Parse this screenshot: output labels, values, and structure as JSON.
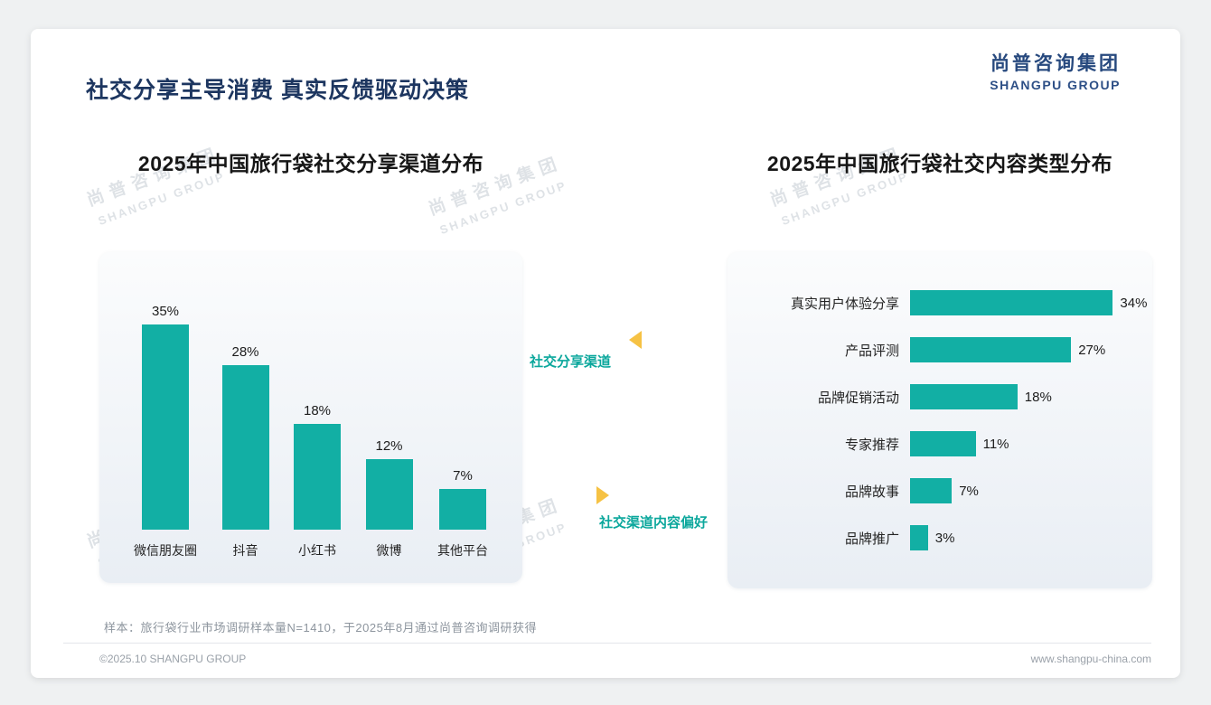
{
  "page": {
    "title": "社交分享主导消费 真实反馈驱动决策",
    "sample_note": "样本：旅行袋行业市场调研样本量N=1410，于2025年8月通过尚普咨询调研获得",
    "footer_left": "©2025.10 SHANGPU GROUP",
    "footer_right": "www.shangpu-china.com"
  },
  "logo": {
    "cn": "尚普咨询集团",
    "en": "SHANGPU GROUP"
  },
  "watermark": {
    "cn": "尚普咨询集团",
    "en": "SHANGPU GROUP"
  },
  "annotations": {
    "left_label": "社交分享渠道",
    "right_label": "社交渠道内容偏好"
  },
  "colors": {
    "teal": "#12afa4",
    "navy": "#1d3660",
    "gold": "#f6c244"
  },
  "chart_data": [
    {
      "type": "bar",
      "orientation": "vertical",
      "title": "2025年中国旅行袋社交分享渠道分布",
      "categories": [
        "微信朋友圈",
        "抖音",
        "小红书",
        "微博",
        "其他平台"
      ],
      "values": [
        35,
        28,
        18,
        12,
        7
      ],
      "unit": "%",
      "ylim": [
        0,
        40
      ],
      "grid": false,
      "data_labels": true,
      "legend": "none"
    },
    {
      "type": "bar",
      "orientation": "horizontal",
      "title": "2025年中国旅行袋社交内容类型分布",
      "categories": [
        "真实用户体验分享",
        "产品评测",
        "品牌促销活动",
        "专家推荐",
        "品牌故事",
        "品牌推广"
      ],
      "values": [
        34,
        27,
        18,
        11,
        7,
        3
      ],
      "unit": "%",
      "xlim": [
        0,
        40
      ],
      "grid": false,
      "data_labels": true,
      "legend": "none"
    }
  ]
}
